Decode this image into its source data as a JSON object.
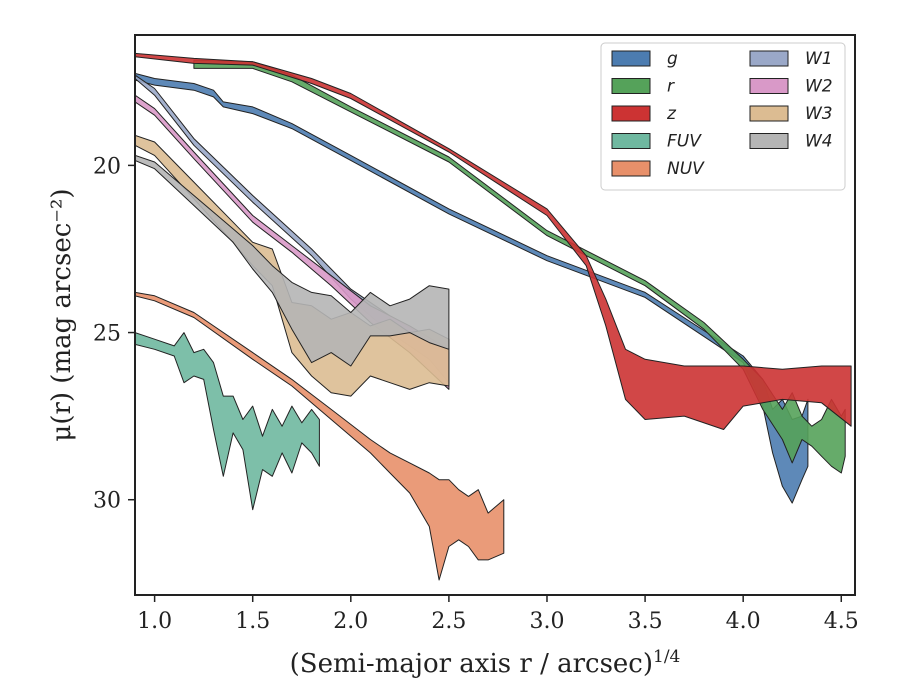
{
  "chart_data": {
    "type": "area",
    "xlabel": "(Semi-major axis r / arcsec)",
    "xlabel_superscript": "1/4",
    "ylabel": "μ(r) (mag arcsec⁻²)",
    "xlim": [
      0.9,
      4.57
    ],
    "ylim": [
      32.85,
      16.1
    ],
    "x_ticks": [
      1.0,
      1.5,
      2.0,
      2.5,
      3.0,
      3.5,
      4.0,
      4.5
    ],
    "x_tick_labels": [
      "1.0",
      "1.5",
      "2.0",
      "2.5",
      "3.0",
      "3.5",
      "4.0",
      "4.5"
    ],
    "y_ticks": [
      20,
      25,
      30
    ],
    "y_tick_labels": [
      "20",
      "25",
      "30"
    ],
    "legend": {
      "position": "top-right",
      "columns": 2
    },
    "series": [
      {
        "name": "g",
        "color": "#4c7cb0",
        "points": [
          [
            0.9,
            17.25,
            17.45
          ],
          [
            1.0,
            17.4,
            17.6
          ],
          [
            1.2,
            17.55,
            17.75
          ],
          [
            1.3,
            17.75,
            17.95
          ],
          [
            1.35,
            18.1,
            18.25
          ],
          [
            1.5,
            18.25,
            18.45
          ],
          [
            1.7,
            18.75,
            18.9
          ],
          [
            2.0,
            19.7,
            19.85
          ],
          [
            2.5,
            21.3,
            21.45
          ],
          [
            3.0,
            22.7,
            22.85
          ],
          [
            3.5,
            23.8,
            23.95
          ],
          [
            4.0,
            25.7,
            25.9
          ],
          [
            4.1,
            26.4,
            27.2
          ],
          [
            4.15,
            27.3,
            28.6
          ],
          [
            4.2,
            27.0,
            29.6
          ],
          [
            4.25,
            27.6,
            30.1
          ],
          [
            4.3,
            27.5,
            29.4
          ],
          [
            4.33,
            27.0,
            29.0
          ]
        ]
      },
      {
        "name": "r",
        "color": "#55a25a",
        "points": [
          [
            1.2,
            16.85,
            17.1
          ],
          [
            1.5,
            16.9,
            17.1
          ],
          [
            1.7,
            17.3,
            17.5
          ],
          [
            2.0,
            18.25,
            18.4
          ],
          [
            2.5,
            19.75,
            19.9
          ],
          [
            3.0,
            21.95,
            22.1
          ],
          [
            3.5,
            23.45,
            23.6
          ],
          [
            3.8,
            24.7,
            24.9
          ],
          [
            4.0,
            25.8,
            26.1
          ],
          [
            4.1,
            26.4,
            27.3
          ],
          [
            4.2,
            27.3,
            28.2
          ],
          [
            4.25,
            26.8,
            28.9
          ],
          [
            4.3,
            27.5,
            28.2
          ],
          [
            4.35,
            27.8,
            28.4
          ],
          [
            4.4,
            27.6,
            28.7
          ],
          [
            4.45,
            27.0,
            29.0
          ],
          [
            4.5,
            27.5,
            29.2
          ],
          [
            4.52,
            27.3,
            28.7
          ]
        ]
      },
      {
        "name": "z",
        "color": "#cc3333",
        "points": [
          [
            0.9,
            16.65,
            16.75
          ],
          [
            1.2,
            16.8,
            16.95
          ],
          [
            1.5,
            16.9,
            17.0
          ],
          [
            1.8,
            17.4,
            17.55
          ],
          [
            2.0,
            17.85,
            18.0
          ],
          [
            2.5,
            19.5,
            19.6
          ],
          [
            3.0,
            21.3,
            21.5
          ],
          [
            3.2,
            22.7,
            23.0
          ],
          [
            3.3,
            24.0,
            24.8
          ],
          [
            3.4,
            25.5,
            27.0
          ],
          [
            3.5,
            25.8,
            27.6
          ],
          [
            3.7,
            26.0,
            27.5
          ],
          [
            3.9,
            26.0,
            27.9
          ],
          [
            4.0,
            26.0,
            27.2
          ],
          [
            4.2,
            26.1,
            27.0
          ],
          [
            4.4,
            26.0,
            27.1
          ],
          [
            4.55,
            26.0,
            27.8
          ]
        ]
      },
      {
        "name": "FUV",
        "color": "#6fb8a0",
        "points": [
          [
            0.9,
            25.0,
            25.35
          ],
          [
            1.0,
            25.2,
            25.5
          ],
          [
            1.1,
            25.4,
            25.7
          ],
          [
            1.15,
            25.0,
            26.5
          ],
          [
            1.2,
            25.6,
            26.3
          ],
          [
            1.25,
            25.5,
            26.4
          ],
          [
            1.3,
            25.9,
            27.9
          ],
          [
            1.35,
            26.9,
            29.3
          ],
          [
            1.4,
            26.9,
            28.0
          ],
          [
            1.45,
            27.6,
            28.5
          ],
          [
            1.5,
            27.2,
            30.3
          ],
          [
            1.55,
            28.1,
            29.1
          ],
          [
            1.6,
            27.3,
            29.3
          ],
          [
            1.65,
            27.8,
            28.6
          ],
          [
            1.7,
            27.2,
            29.2
          ],
          [
            1.75,
            27.7,
            28.3
          ],
          [
            1.8,
            27.3,
            28.6
          ],
          [
            1.84,
            27.6,
            29.0
          ]
        ]
      },
      {
        "name": "NUV",
        "color": "#e8906a",
        "points": [
          [
            0.9,
            23.8,
            23.9
          ],
          [
            1.0,
            23.9,
            24.05
          ],
          [
            1.2,
            24.4,
            24.55
          ],
          [
            1.5,
            25.6,
            25.8
          ],
          [
            1.7,
            26.4,
            26.6
          ],
          [
            1.9,
            27.3,
            27.6
          ],
          [
            2.1,
            28.2,
            28.6
          ],
          [
            2.2,
            28.6,
            29.2
          ],
          [
            2.3,
            28.9,
            29.8
          ],
          [
            2.4,
            29.2,
            30.8
          ],
          [
            2.45,
            29.4,
            32.4
          ],
          [
            2.5,
            29.4,
            31.4
          ],
          [
            2.55,
            29.7,
            31.2
          ],
          [
            2.6,
            29.9,
            31.4
          ],
          [
            2.65,
            29.7,
            31.8
          ],
          [
            2.7,
            30.4,
            31.8
          ],
          [
            2.78,
            30.0,
            31.6
          ]
        ]
      },
      {
        "name": "W1",
        "color": "#9aa8c8",
        "points": [
          [
            0.9,
            17.3,
            17.4
          ],
          [
            1.0,
            17.7,
            17.9
          ],
          [
            1.2,
            19.2,
            19.4
          ],
          [
            1.5,
            20.9,
            21.1
          ],
          [
            1.8,
            22.5,
            22.7
          ],
          [
            2.0,
            23.7,
            24.0
          ],
          [
            2.2,
            24.5,
            25.0
          ],
          [
            2.4,
            25.2,
            25.8
          ],
          [
            2.5,
            25.6,
            26.5
          ]
        ]
      },
      {
        "name": "W2",
        "color": "#d999c8",
        "points": [
          [
            0.9,
            17.9,
            18.1
          ],
          [
            1.0,
            18.3,
            18.5
          ],
          [
            1.2,
            19.6,
            19.8
          ],
          [
            1.5,
            21.5,
            21.7
          ],
          [
            1.7,
            22.4,
            22.6
          ],
          [
            1.9,
            23.3,
            23.6
          ],
          [
            2.1,
            24.2,
            24.7
          ],
          [
            2.3,
            24.8,
            25.6
          ],
          [
            2.5,
            25.5,
            26.7
          ]
        ]
      },
      {
        "name": "W3",
        "color": "#dcbc92",
        "points": [
          [
            0.9,
            19.1,
            19.4
          ],
          [
            1.0,
            19.3,
            19.7
          ],
          [
            1.2,
            20.5,
            21.0
          ],
          [
            1.4,
            21.7,
            22.3
          ],
          [
            1.5,
            22.3,
            23.0
          ],
          [
            1.6,
            22.5,
            23.6
          ],
          [
            1.7,
            24.1,
            25.6
          ],
          [
            1.8,
            24.2,
            26.3
          ],
          [
            1.9,
            24.6,
            26.8
          ],
          [
            2.0,
            24.4,
            26.9
          ],
          [
            2.1,
            24.8,
            26.3
          ],
          [
            2.2,
            24.6,
            26.5
          ],
          [
            2.3,
            25.0,
            26.7
          ],
          [
            2.4,
            24.9,
            26.5
          ],
          [
            2.5,
            25.2,
            26.6
          ]
        ]
      },
      {
        "name": "W4",
        "color": "#b5b5b5",
        "points": [
          [
            0.9,
            19.7,
            19.85
          ],
          [
            1.0,
            19.9,
            20.1
          ],
          [
            1.2,
            20.9,
            21.2
          ],
          [
            1.4,
            21.9,
            22.3
          ],
          [
            1.5,
            22.4,
            23.1
          ],
          [
            1.6,
            23.0,
            23.8
          ],
          [
            1.7,
            23.5,
            24.9
          ],
          [
            1.8,
            23.8,
            25.9
          ],
          [
            1.9,
            23.9,
            25.6
          ],
          [
            2.0,
            24.4,
            26.0
          ],
          [
            2.1,
            23.8,
            25.1
          ],
          [
            2.2,
            24.2,
            25.1
          ],
          [
            2.3,
            24.0,
            25.0
          ],
          [
            2.4,
            23.6,
            25.3
          ],
          [
            2.5,
            23.7,
            25.5
          ]
        ]
      }
    ]
  }
}
